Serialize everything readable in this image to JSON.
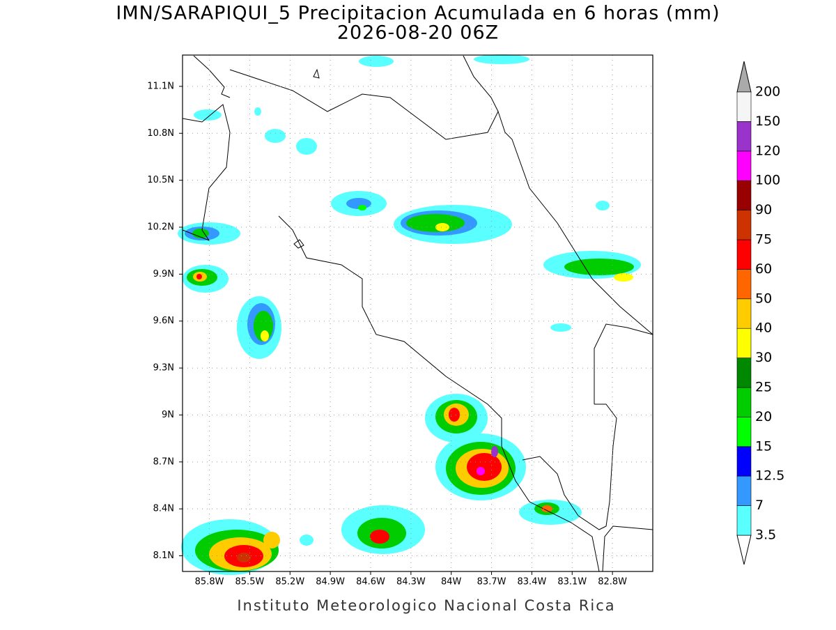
{
  "title": [
    "IMN/SARAPIQUI_5 Precipitacion Acumulada en 6 horas (mm)",
    "2026-08-20 06Z"
  ],
  "footer": "Instituto Meteorologico Nacional Costa Rica",
  "map": {
    "xlim": [
      -86.0,
      -82.5
    ],
    "ylim": [
      8.0,
      11.3
    ],
    "grid": true,
    "xticks": [
      {
        "value": -85.8,
        "label": "85.8W"
      },
      {
        "value": -85.5,
        "label": "85.5W"
      },
      {
        "value": -85.2,
        "label": "85.2W"
      },
      {
        "value": -84.9,
        "label": "84.9W"
      },
      {
        "value": -84.6,
        "label": "84.6W"
      },
      {
        "value": -84.3,
        "label": "84.3W"
      },
      {
        "value": -84.0,
        "label": "84W"
      },
      {
        "value": -83.7,
        "label": "83.7W"
      },
      {
        "value": -83.4,
        "label": "83.4W"
      },
      {
        "value": -83.1,
        "label": "83.1W"
      },
      {
        "value": -82.8,
        "label": "82.8W"
      }
    ],
    "yticks": [
      {
        "value": 8.1,
        "label": "8.1N"
      },
      {
        "value": 8.4,
        "label": "8.4N"
      },
      {
        "value": 8.7,
        "label": "8.7N"
      },
      {
        "value": 9.0,
        "label": "9N"
      },
      {
        "value": 9.3,
        "label": "9.3N"
      },
      {
        "value": 9.6,
        "label": "9.6N"
      },
      {
        "value": 9.9,
        "label": "9.9N"
      },
      {
        "value": 10.2,
        "label": "10.2N"
      },
      {
        "value": 10.5,
        "label": "10.5N"
      },
      {
        "value": 10.8,
        "label": "10.8N"
      },
      {
        "value": 11.1,
        "label": "11.1N"
      }
    ]
  },
  "colorbar": {
    "levels": [
      3.5,
      7,
      12.5,
      15,
      20,
      25,
      30,
      40,
      50,
      60,
      75,
      90,
      100,
      120,
      150,
      200
    ],
    "colors": [
      "#5affff",
      "#3399ff",
      "#0000ff",
      "#00ff00",
      "#00cc00",
      "#008800",
      "#ffff00",
      "#ffcc00",
      "#ff6600",
      "#ff0000",
      "#cc3300",
      "#990000",
      "#ff00ff",
      "#9933cc",
      "#f5f5f5"
    ],
    "under_color": "#ffffff",
    "over_color": "#aaaaaa"
  }
}
